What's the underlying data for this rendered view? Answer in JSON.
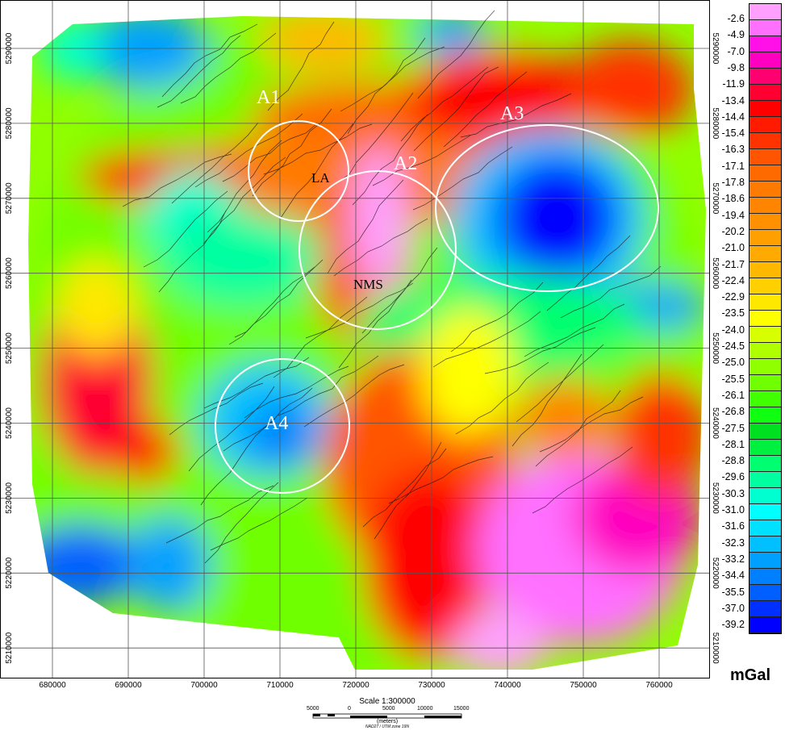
{
  "map": {
    "x_ticks": [
      "680000",
      "690000",
      "700000",
      "710000",
      "720000",
      "730000",
      "740000",
      "750000",
      "760000"
    ],
    "y_ticks": [
      "5290000",
      "5280000",
      "5270000",
      "5260000",
      "5250000",
      "5240000",
      "5230000",
      "5220000",
      "5210000"
    ],
    "anomalies": [
      {
        "label": "A1"
      },
      {
        "label": "A2"
      },
      {
        "label": "A3"
      },
      {
        "label": "A4"
      }
    ],
    "features": [
      {
        "label": "NMS"
      },
      {
        "label": "LA"
      }
    ]
  },
  "legend": {
    "unit": "mGal",
    "labels": [
      "-2.6",
      "-4.9",
      "-7.0",
      "-9.8",
      "-11.9",
      "-13.4",
      "-14.4",
      "-15.4",
      "-16.3",
      "-17.1",
      "-17.8",
      "-18.6",
      "-19.4",
      "-20.2",
      "-21.0",
      "-21.7",
      "-22.4",
      "-22.9",
      "-23.5",
      "-24.0",
      "-24.5",
      "-25.0",
      "-25.5",
      "-26.1",
      "-26.8",
      "-27.5",
      "-28.1",
      "-28.8",
      "-29.6",
      "-30.3",
      "-31.0",
      "-31.6",
      "-32.3",
      "-33.2",
      "-34.4",
      "-35.5",
      "-37.0",
      "-39.2"
    ],
    "colors": [
      "#ffa0ff",
      "#ff70ff",
      "#ff10e8",
      "#ff00c0",
      "#ff0070",
      "#ff0030",
      "#ff0000",
      "#ff1a00",
      "#ff3300",
      "#ff5500",
      "#ff6a00",
      "#ff7a00",
      "#ff8400",
      "#ff9000",
      "#ffa000",
      "#ffaa00",
      "#ffb800",
      "#ffd000",
      "#ffe800",
      "#ffff00",
      "#d8ff00",
      "#b0ff00",
      "#90ff00",
      "#70ff00",
      "#40ff00",
      "#10ff10",
      "#00e020",
      "#00f040",
      "#00ff70",
      "#00ffa0",
      "#00ffd0",
      "#00ffff",
      "#00e0ff",
      "#00c0ff",
      "#00a0ff",
      "#0080ff",
      "#0060ff",
      "#0030ff",
      "#0000ff"
    ]
  },
  "scale": {
    "title": "Scale 1:300000",
    "labels": [
      "5000",
      "0",
      "5000",
      "10000",
      "15000"
    ],
    "units": "(meters)",
    "projection": "NAD27 / UTM zone 19N"
  }
}
